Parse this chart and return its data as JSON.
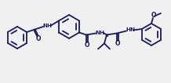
{
  "bg_color": "#f0f0f0",
  "line_color": "#1a1a5e",
  "line_width": 1.3,
  "figsize": [
    2.18,
    1.06
  ],
  "dpi": 100,
  "xlim": [
    0,
    218
  ],
  "ylim": [
    0,
    106
  ]
}
